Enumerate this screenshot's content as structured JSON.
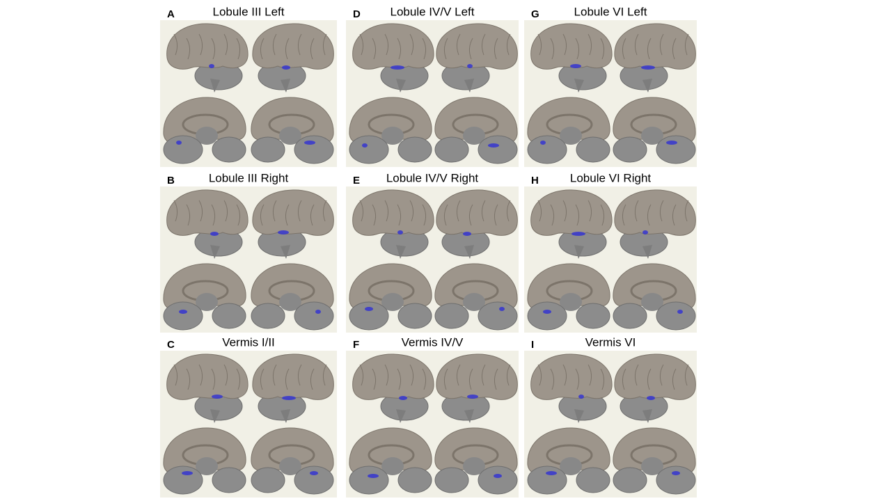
{
  "panels": [
    {
      "letter": "A",
      "title": "Lobule III Left"
    },
    {
      "letter": "B",
      "title": "Lobule III Right"
    },
    {
      "letter": "C",
      "title": "Vermis I/II"
    },
    {
      "letter": "D",
      "title": "Lobule IV/V Left"
    },
    {
      "letter": "E",
      "title": "Lobule IV/V Right"
    },
    {
      "letter": "F",
      "title": "Vermis IV/V"
    },
    {
      "letter": "G",
      "title": "Lobule VI Left"
    },
    {
      "letter": "H",
      "title": "Lobule VI Right"
    },
    {
      "letter": "I",
      "title": "Vermis VI"
    }
  ]
}
